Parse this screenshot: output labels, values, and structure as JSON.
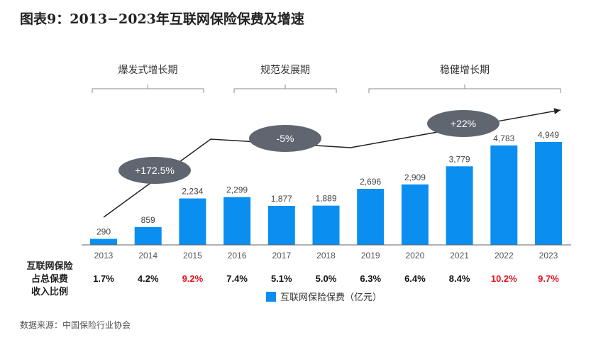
{
  "title": "图表9：2013−2023年互联网保险保费及增速",
  "source": "数据来源：中国保险行业协会",
  "colors": {
    "bar": "#0a8ff0",
    "highlight": "#e8121c",
    "ellipse": "#5f6670",
    "text": "#222222"
  },
  "phases": [
    {
      "label": "爆发式增长期",
      "growth": "+172.5%"
    },
    {
      "label": "规范发展期",
      "growth": "-5%"
    },
    {
      "label": "稳健增长期",
      "growth": "+22%"
    }
  ],
  "ratio_row_label": [
    "互联网保险",
    "占总保费",
    "收入比例"
  ],
  "chart_data": {
    "type": "bar",
    "title": "图表9：2013−2023年互联网保险保费及增速",
    "categories": [
      "2013",
      "2014",
      "2015",
      "2016",
      "2017",
      "2018",
      "2019",
      "2020",
      "2021",
      "2022",
      "2023"
    ],
    "series": [
      {
        "name": "互联网保险保费（亿元）",
        "values": [
          290,
          859,
          2234,
          2299,
          1877,
          1889,
          2696,
          2909,
          3779,
          4783,
          4949
        ]
      }
    ],
    "value_labels": [
      "290",
      "859",
      "2,234",
      "2,299",
      "1,877",
      "1,889",
      "2,696",
      "2,909",
      "3,779",
      "4,783",
      "4,949"
    ],
    "ratios": [
      "1.7%",
      "4.2%",
      "9.2%",
      "7.4%",
      "5.1%",
      "5.0%",
      "6.3%",
      "6.4%",
      "8.4%",
      "10.2%",
      "9.7%"
    ],
    "ratio_highlight": [
      false,
      false,
      true,
      false,
      false,
      false,
      false,
      false,
      false,
      true,
      true
    ],
    "legend": "互联网保险保费（亿元）",
    "legend_position": "bottom",
    "grid": false
  }
}
